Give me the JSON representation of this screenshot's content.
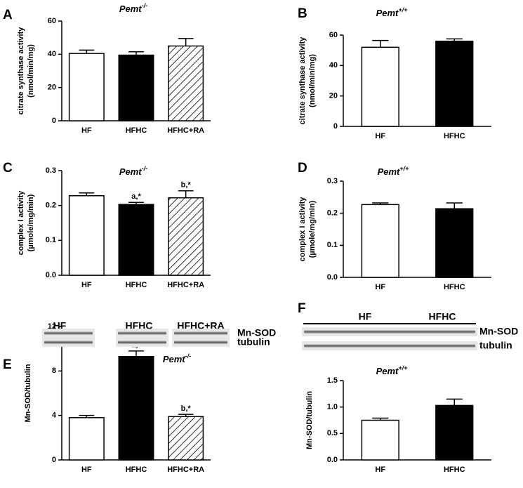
{
  "chart_data": [
    {
      "type": "bar",
      "panel": "A",
      "title": "Pemt",
      "title_superscript": "-/-",
      "ylabel": [
        "citrate synthase activity",
        "(nmol/min/mg)"
      ],
      "categories": [
        "HF",
        "HFHC",
        "HFHC+RA"
      ],
      "values": [
        40.5,
        39.5,
        45
      ],
      "errors": [
        2,
        2,
        4.5
      ],
      "fills": [
        "white",
        "black",
        "hatched"
      ],
      "ylim": [
        0,
        60
      ],
      "yticks": [
        0,
        20,
        40,
        60
      ]
    },
    {
      "type": "bar",
      "panel": "B",
      "title": "Pemt",
      "title_superscript": "+/+",
      "ylabel": [
        "citrate synthase activity",
        "(nmol/min/mg)"
      ],
      "categories": [
        "HF",
        "HFHC"
      ],
      "values": [
        52,
        56
      ],
      "errors": [
        4.5,
        1.5
      ],
      "fills": [
        "white",
        "black"
      ],
      "ylim": [
        0,
        60
      ],
      "yticks": [
        0,
        20,
        40,
        60
      ]
    },
    {
      "type": "bar",
      "panel": "C",
      "title": "Pemt",
      "title_superscript": "-/-",
      "ylabel": [
        "complex I activity",
        "(µmole/mg/min)"
      ],
      "categories": [
        "HF",
        "HFHC",
        "HFHC+RA"
      ],
      "values": [
        0.228,
        0.203,
        0.222
      ],
      "errors": [
        0.008,
        0.006,
        0.02
      ],
      "annotations": [
        null,
        "a,*",
        "b,*"
      ],
      "fills": [
        "white",
        "black",
        "hatched"
      ],
      "ylim": [
        0,
        0.3
      ],
      "yticks": [
        {
          "value": 0,
          "label": "0.0"
        },
        0.1,
        0.2,
        0.3
      ]
    },
    {
      "type": "bar",
      "panel": "D",
      "title": "Pemt",
      "title_superscript": "+/+",
      "ylabel": [
        "complex I activity",
        "(µmole/mg/min)"
      ],
      "categories": [
        "HF",
        "HFHC"
      ],
      "values": [
        0.227,
        0.214
      ],
      "errors": [
        0.005,
        0.018
      ],
      "fills": [
        "white",
        "black"
      ],
      "ylim": [
        0,
        0.3
      ],
      "yticks": [
        {
          "value": 0,
          "label": "0.0"
        },
        0.1,
        0.2,
        0.3
      ]
    },
    {
      "type": "bar",
      "panel": "E",
      "title": "Pemt",
      "title_superscript": "-/-",
      "ylabel": [
        "Mn-SOD/tubulin"
      ],
      "categories": [
        "HF",
        "HFHC",
        "HFHC+RA"
      ],
      "values": [
        3.8,
        9.3,
        3.9
      ],
      "errors": [
        0.2,
        0.5,
        0.2
      ],
      "annotations": [
        null,
        "a,*",
        "b,*"
      ],
      "fills": [
        "white",
        "black",
        "hatched"
      ],
      "ylim": [
        0,
        12
      ],
      "yticks": [
        0,
        4,
        8,
        12
      ],
      "blot": {
        "lanes": [
          "HF",
          "HFHC",
          "HFHC+RA"
        ],
        "bands": [
          "Mn-SOD",
          "tubulin"
        ]
      }
    },
    {
      "type": "bar",
      "panel": "F",
      "title": "Pemt",
      "title_superscript": "+/+",
      "ylabel": [
        "Mn-SOD/tubulin"
      ],
      "categories": [
        "HF",
        "HFHC"
      ],
      "values": [
        0.75,
        1.03
      ],
      "errors": [
        0.04,
        0.12
      ],
      "fills": [
        "white",
        "black"
      ],
      "ylim": [
        0,
        1.5
      ],
      "yticks": [
        {
          "value": 0,
          "label": "0.0"
        },
        0.5,
        {
          "value": 1,
          "label": "1.0"
        },
        1.5
      ],
      "blot": {
        "lanes": [
          "HF",
          "HFHC"
        ],
        "bands": [
          "Mn-SOD",
          "tubulin"
        ]
      }
    }
  ]
}
